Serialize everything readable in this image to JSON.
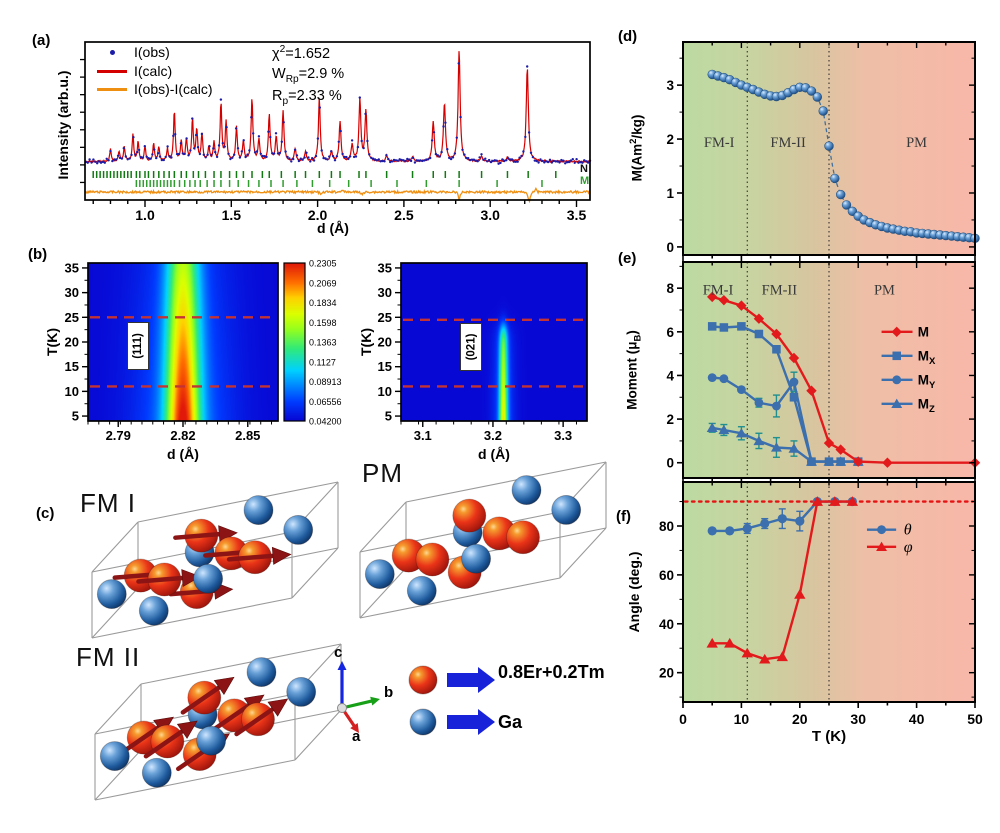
{
  "colors": {
    "obs_blue": "#1c1ca8",
    "calc_red": "#d40000",
    "diff_orange": "#ef8f12",
    "bragg_n_green": "#127a12",
    "bragg_m_green": "#2f9e2f",
    "dashed_red": "#c43333",
    "data_blue": "#3b6fad",
    "accent_red": "#e31a1c",
    "error_teal": "#1f8f8f",
    "bg_green": "#bcdaa2",
    "bg_tan": "#d8c5a0",
    "bg_pink": "#f8b7a9",
    "arrow_blue": "#1822d8",
    "moment_arrow": "#8c1414",
    "axis_c_blue": "#1526e0",
    "axis_b_green": "#17a017",
    "axis_a_red": "#d42020"
  },
  "transitions_K": [
    11,
    25
  ],
  "panels": {
    "a": {
      "letter": "(a)",
      "legend": [
        "I(obs)",
        "I(calc)",
        "I(obs)-I(calc)"
      ],
      "stats": {
        "chi_base": "χ",
        "chi_sup": "2",
        "chi_rest": "=1.652",
        "w_base": "W",
        "w_sub": "Rp",
        "w_rest": "=2.9 %",
        "r_base": "R",
        "r_sub": "p",
        "r_rest": "=2.33 %"
      },
      "ylabel": "Intensity (arb.u.)",
      "xlabel": "d (Å)",
      "n_label": "N",
      "m_label": "M"
    },
    "b": {
      "letter": "(b)",
      "left_label": "(111)",
      "right_label": "(021)",
      "ylabel": "T(K)",
      "xlabel": "d (Å)",
      "colorbar_ticks": [
        "0.2305",
        "0.2069",
        "0.1834",
        "0.1598",
        "0.1363",
        "0.1127",
        "0.08913",
        "0.06556",
        "0.04200"
      ]
    },
    "c": {
      "letter": "(c)",
      "titles": [
        "FM I",
        "PM",
        "FM II"
      ],
      "axis_labels": {
        "c": "c",
        "b": "b",
        "a": "a"
      },
      "legend": [
        {
          "label": "0.8Er+0.2Tm"
        },
        {
          "label": "Ga"
        }
      ]
    },
    "d": {
      "letter": "(d)",
      "ylabel_pre": "M(Am",
      "ylabel_sup": "2",
      "ylabel_post": "/kg)"
    },
    "e": {
      "letter": "(e)",
      "ylabel_pre": "Moment (μ",
      "ylabel_sub": "B",
      "ylabel_post": ")"
    },
    "f": {
      "letter": "(f)",
      "ylabel": "Angle (deg.)",
      "xlabel": "T (K)"
    }
  },
  "structures": {
    "basis": {
      "u": [
        200,
        -40
      ],
      "v": [
        46,
        -50
      ],
      "w": [
        0,
        -66
      ]
    },
    "red_atoms": [
      [
        0.42,
        0.55,
        0.88
      ],
      [
        0.14,
        0.45,
        0.52
      ],
      [
        0.27,
        0.4,
        0.42
      ],
      [
        0.57,
        0.55,
        0.52
      ],
      [
        0.7,
        0.5,
        0.42
      ],
      [
        0.42,
        0.45,
        0.1
      ]
    ],
    "blue_atoms": [
      [
        0.66,
        0.75,
        0.97
      ],
      [
        0.03,
        0.3,
        0.42
      ],
      [
        0.4,
        0.6,
        0.6
      ],
      [
        0.5,
        0.35,
        0.33
      ],
      [
        0.87,
        0.7,
        0.58
      ],
      [
        0.24,
        0.3,
        0.04
      ]
    ],
    "cells": [
      {
        "title": "FM I",
        "moment_dir": [
          1,
          -0.08
        ]
      },
      {
        "title": "PM",
        "moment_dir": null
      },
      {
        "title": "FM II",
        "moment_dir": [
          0.8,
          -0.55
        ]
      }
    ]
  },
  "chart_data": [
    {
      "id": "a",
      "type": "line",
      "title": "Rietveld refinement of neutron diffraction",
      "xlabel": "d (Å)",
      "ylabel": "Intensity (arb.u.)",
      "xlim": [
        0.66,
        3.58
      ],
      "x_ticks": [
        1.0,
        1.5,
        2.0,
        2.5,
        3.0,
        3.5
      ],
      "series": [
        {
          "name": "I(obs)",
          "style": "points",
          "color": "#1c1ca8"
        },
        {
          "name": "I(calc)",
          "style": "line",
          "color": "#d40000"
        },
        {
          "name": "I(obs)-I(calc)",
          "style": "line",
          "color": "#ef8f12"
        }
      ],
      "fit_stats": {
        "chi2": 1.652,
        "wrp_percent": 2.9,
        "rp_percent": 2.33
      },
      "peaks": [
        [
          0.8,
          0.1
        ],
        [
          0.85,
          0.08
        ],
        [
          0.88,
          0.12
        ],
        [
          0.93,
          0.22
        ],
        [
          0.96,
          0.16
        ],
        [
          1.0,
          0.12
        ],
        [
          1.05,
          0.15
        ],
        [
          1.08,
          0.12
        ],
        [
          1.13,
          0.1
        ],
        [
          1.17,
          0.42
        ],
        [
          1.21,
          0.16
        ],
        [
          1.24,
          0.18
        ],
        [
          1.275,
          0.34
        ],
        [
          1.3,
          0.26
        ],
        [
          1.33,
          0.22
        ],
        [
          1.37,
          0.12
        ],
        [
          1.4,
          0.15
        ],
        [
          1.44,
          0.48
        ],
        [
          1.47,
          0.32
        ],
        [
          1.53,
          0.28
        ],
        [
          1.57,
          0.16
        ],
        [
          1.62,
          0.52
        ],
        [
          1.66,
          0.18
        ],
        [
          1.72,
          0.38
        ],
        [
          1.76,
          0.2
        ],
        [
          1.8,
          0.42
        ],
        [
          1.87,
          0.1
        ],
        [
          1.93,
          0.08
        ],
        [
          2.01,
          0.52
        ],
        [
          2.08,
          0.08
        ],
        [
          2.13,
          0.33
        ],
        [
          2.2,
          0.14
        ],
        [
          2.245,
          0.52
        ],
        [
          2.28,
          0.42
        ],
        [
          2.4,
          0.05
        ],
        [
          2.55,
          0.04
        ],
        [
          2.67,
          0.33
        ],
        [
          2.735,
          0.48
        ],
        [
          2.82,
          0.92
        ],
        [
          2.95,
          0.04
        ],
        [
          3.1,
          0.03
        ],
        [
          3.215,
          0.78
        ]
      ],
      "bragg_nuclear": [
        0.7,
        0.72,
        0.74,
        0.76,
        0.78,
        0.8,
        0.82,
        0.84,
        0.86,
        0.88,
        0.9,
        0.92,
        0.95,
        0.97,
        1.0,
        1.02,
        1.05,
        1.08,
        1.11,
        1.14,
        1.17,
        1.21,
        1.24,
        1.28,
        1.31,
        1.35,
        1.4,
        1.44,
        1.49,
        1.53,
        1.57,
        1.62,
        1.68,
        1.72,
        1.79,
        1.87,
        1.93,
        2.01,
        2.08,
        2.13,
        2.24,
        2.28,
        2.4,
        2.55,
        2.67,
        2.74,
        2.82,
        2.95,
        3.1,
        3.22,
        3.38
      ],
      "bragg_magnetic": [
        0.95,
        0.97,
        0.99,
        1.01,
        1.03,
        1.05,
        1.07,
        1.09,
        1.11,
        1.13,
        1.15,
        1.17,
        1.2,
        1.23,
        1.26,
        1.29,
        1.32,
        1.36,
        1.4,
        1.44,
        1.49,
        1.54,
        1.6,
        1.66,
        1.73,
        1.8,
        1.88,
        1.97,
        2.07,
        2.18,
        2.31,
        2.46,
        2.63,
        2.82,
        3.04,
        3.3
      ]
    },
    {
      "id": "b-111",
      "type": "heatmap",
      "label": "(111)",
      "xlabel": "d (Å)",
      "ylabel": "T(K)",
      "xlim": [
        2.776,
        2.864
      ],
      "x_ticks": [
        2.79,
        2.82,
        2.85
      ],
      "x_minor": 0.005,
      "ylim": [
        5,
        35
      ],
      "y_ticks": [
        5,
        10,
        15,
        20,
        25,
        30,
        35
      ],
      "dashed_T": [
        11,
        25
      ],
      "peak_d": 2.82,
      "vmin": 0.042,
      "vmax": 0.2305,
      "amp0": 0.235,
      "amp_slope": 0.0024,
      "fade_T": null,
      "s1": 0.0075,
      "s2": 0.022
    },
    {
      "id": "b-021",
      "type": "heatmap",
      "label": "(021)",
      "xlabel": "d (Å)",
      "ylabel": "T(K)",
      "xlim": [
        3.069,
        3.334
      ],
      "x_ticks": [
        3.1,
        3.2,
        3.3
      ],
      "x_minor": 0.025,
      "ylim": [
        5,
        35
      ],
      "y_ticks": [
        5,
        10,
        15,
        20,
        25,
        30,
        35
      ],
      "dashed_T": [
        11,
        24.5
      ],
      "peak_d": 3.215,
      "vmin": 0.042,
      "vmax": 0.2305,
      "amp0": 0.178,
      "amp_slope": 0.0022,
      "fade_T": 23.2,
      "s1": 0.006,
      "s2": 0.016
    },
    {
      "id": "d",
      "type": "scatter",
      "ylabel": "M(Am2/kg)",
      "xlabel": "T (K)",
      "xlim": [
        0,
        50
      ],
      "ylim": [
        -0.15,
        3.8
      ],
      "x_ticks": [
        0,
        10,
        20,
        30,
        40,
        50
      ],
      "y_ticks": [
        0,
        1,
        2,
        3
      ],
      "regions": [
        {
          "label": "FM-I",
          "T": 6.2
        },
        {
          "label": "FM-II",
          "T": 18
        },
        {
          "label": "PM",
          "T": 40
        }
      ],
      "region_val": 1.85,
      "x": [
        5,
        6,
        7,
        8,
        9,
        10,
        11,
        12,
        13,
        14,
        15,
        16,
        17,
        18,
        19,
        20,
        21,
        22,
        23,
        24,
        25,
        26,
        27,
        28,
        29,
        30,
        31,
        32,
        33,
        34,
        35,
        36,
        37,
        38,
        39,
        40,
        41,
        42,
        43,
        44,
        45,
        46,
        47,
        48,
        49,
        50
      ],
      "y": [
        3.2,
        3.17,
        3.14,
        3.1,
        3.05,
        3.0,
        2.96,
        2.92,
        2.87,
        2.83,
        2.8,
        2.79,
        2.81,
        2.86,
        2.92,
        2.96,
        2.95,
        2.89,
        2.78,
        2.52,
        1.87,
        1.27,
        0.97,
        0.78,
        0.66,
        0.57,
        0.5,
        0.45,
        0.41,
        0.38,
        0.35,
        0.33,
        0.31,
        0.29,
        0.28,
        0.26,
        0.25,
        0.24,
        0.23,
        0.22,
        0.21,
        0.2,
        0.19,
        0.18,
        0.17,
        0.16
      ]
    },
    {
      "id": "e",
      "type": "line",
      "ylabel": "Moment (μB)",
      "xlabel": "T (K)",
      "xlim": [
        0,
        50
      ],
      "ylim": [
        -0.7,
        9.2
      ],
      "x_ticks": [
        0,
        10,
        20,
        30,
        40,
        50
      ],
      "y_ticks": [
        0,
        2,
        4,
        6,
        8
      ],
      "regions": [
        {
          "label": "FM-I",
          "T": 6
        },
        {
          "label": "FM-II",
          "T": 16.5
        },
        {
          "label": "PM",
          "T": 34.5
        }
      ],
      "region_val": 7.7,
      "err_color": "#1f8f8f",
      "legend_vals": [
        6.0,
        4.9,
        3.8,
        2.7
      ],
      "series": [
        {
          "name": "M",
          "label_main": "M",
          "label_sub": "",
          "marker": "diamond",
          "color": "#e31a1c",
          "x": [
            5,
            7,
            10,
            13,
            16,
            19,
            22,
            25,
            27,
            30,
            35,
            50
          ],
          "y": [
            7.6,
            7.45,
            7.2,
            6.6,
            5.9,
            4.8,
            3.3,
            0.9,
            0.6,
            0.05,
            0.0,
            0.0
          ]
        },
        {
          "name": "MX",
          "label_main": "M",
          "label_sub": "X",
          "marker": "square",
          "color": "#3b6fad",
          "x": [
            5,
            7,
            10,
            13,
            16,
            19,
            22,
            25,
            27,
            30
          ],
          "y": [
            6.25,
            6.2,
            6.25,
            5.9,
            5.2,
            3.0,
            0.05,
            0.05,
            0.05,
            0.05
          ]
        },
        {
          "name": "MY",
          "label_main": "M",
          "label_sub": "Y",
          "marker": "circle",
          "color": "#3b6fad",
          "x": [
            5,
            7,
            10,
            13,
            16,
            19,
            22,
            25,
            27,
            30
          ],
          "y": [
            3.9,
            3.85,
            3.35,
            2.75,
            2.6,
            3.7,
            0.05,
            0.05,
            0.05,
            0.05
          ],
          "err": [
            0,
            0,
            0,
            0.2,
            0.5,
            0.45,
            0,
            0,
            0,
            0
          ]
        },
        {
          "name": "MZ",
          "label_main": "M",
          "label_sub": "Z",
          "marker": "triangle",
          "color": "#3b6fad",
          "x": [
            5,
            7,
            10,
            13,
            16,
            19,
            22,
            25,
            27,
            30
          ],
          "y": [
            1.6,
            1.5,
            1.35,
            1.0,
            0.7,
            0.65,
            0.05,
            0.05,
            0.05,
            0.05
          ],
          "err": [
            0.2,
            0.25,
            0.3,
            0.35,
            0.45,
            0.35,
            0,
            0,
            0,
            0
          ]
        }
      ]
    },
    {
      "id": "f",
      "type": "line",
      "ylabel": "Angle (deg.)",
      "xlabel": "T (K)",
      "xlim": [
        0,
        50
      ],
      "ylim": [
        8,
        98
      ],
      "x_ticks": [
        0,
        10,
        20,
        30,
        40,
        50
      ],
      "y_ticks": [
        20,
        40,
        60,
        80
      ],
      "hline": 90,
      "legend_vals": [
        78.5,
        71.5
      ],
      "series": [
        {
          "name": "θ",
          "marker": "circle",
          "color": "#3b6fad",
          "x": [
            5,
            8,
            11,
            14,
            17,
            20,
            23,
            26,
            29
          ],
          "y": [
            78,
            78,
            79,
            81,
            83,
            82,
            90,
            90,
            90
          ],
          "err": [
            0,
            0,
            2,
            2,
            4,
            4,
            0,
            0,
            0
          ]
        },
        {
          "name": "φ",
          "marker": "triangle",
          "color": "#e31a1c",
          "x": [
            5,
            8,
            11,
            14,
            17,
            20,
            23,
            26,
            29
          ],
          "y": [
            32,
            32,
            28,
            25.5,
            26.5,
            52,
            90,
            90,
            90
          ]
        }
      ]
    }
  ]
}
